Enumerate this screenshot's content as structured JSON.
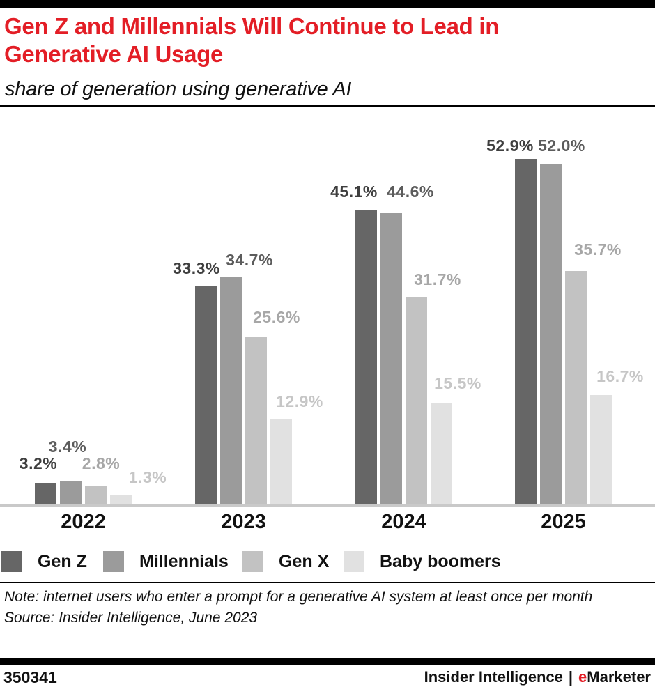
{
  "header": {
    "title": "Gen Z and Millennials Will Continue to Lead in Generative AI Usage",
    "subtitle": "share of generation using generative AI"
  },
  "chart_data": {
    "type": "bar",
    "categories": [
      "2022",
      "2023",
      "2024",
      "2025"
    ],
    "series": [
      {
        "name": "Gen Z",
        "color": "#666666",
        "label_color": "#3f3f3f",
        "values": [
          3.2,
          33.3,
          45.1,
          52.9
        ]
      },
      {
        "name": "Millennials",
        "color": "#9b9b9b",
        "label_color": "#5c5c5c",
        "values": [
          3.4,
          34.7,
          44.6,
          52.0
        ]
      },
      {
        "name": "Gen X",
        "color": "#c2c2c2",
        "label_color": "#a7a7a7",
        "values": [
          2.8,
          25.6,
          31.7,
          35.7
        ]
      },
      {
        "name": "Baby boomers",
        "color": "#e1e1e1",
        "label_color": "#c6c6c6",
        "values": [
          1.3,
          12.9,
          15.5,
          16.7
        ]
      }
    ],
    "value_suffix": "%",
    "value_decimals": 1,
    "ylim": [
      0,
      59.6
    ],
    "grid": false,
    "legend_position": "bottom",
    "axis_line_color": "#c9c9c9",
    "xlabel": "",
    "ylabel": ""
  },
  "footer": {
    "note": "Note: internet users who enter a prompt for a generative AI system at least once per month",
    "source": "Source: Insider Intelligence, June 2023",
    "chart_id": "350341",
    "brand_left": "Insider Intelligence",
    "brand_divider": "|",
    "brand_e": "e",
    "brand_rest": "Marketer"
  },
  "colors": {
    "title_red": "#e31e26",
    "brand_red": "#e31e26",
    "top_bar": "#000000",
    "axis_line": "#c9c9c9"
  }
}
